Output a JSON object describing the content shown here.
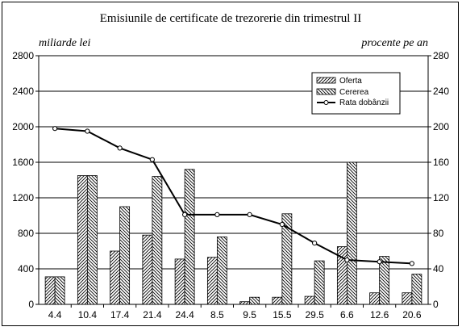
{
  "chart_data": {
    "type": "bar",
    "title": "Emisiunile de certificate de trezorerie din trimestrul II",
    "ylabel_left": "miliarde lei",
    "ylabel_right": "procente pe an",
    "ylim_left": [
      0,
      2800
    ],
    "ylim_right": [
      0,
      280
    ],
    "yticks_left": [
      "0",
      "400",
      "800",
      "1200",
      "1600",
      "2000",
      "2400",
      "2800"
    ],
    "yticks_right": [
      "0",
      "40",
      "80",
      "120",
      "160",
      "200",
      "240",
      "280"
    ],
    "grid": true,
    "legend_position": "top-right",
    "categories": [
      "4.4",
      "10.4",
      "17.4",
      "21.4",
      "24.4",
      "8.5",
      "9.5",
      "15.5",
      "29.5",
      "6.6",
      "12.6",
      "20.6"
    ],
    "series": [
      {
        "name": "Oferta",
        "kind": "bar",
        "axis": "left",
        "pattern": "hatch-forward",
        "values": [
          310,
          1450,
          600,
          780,
          510,
          530,
          30,
          80,
          90,
          650,
          130,
          130
        ]
      },
      {
        "name": "Cererea",
        "kind": "bar",
        "axis": "left",
        "pattern": "hatch-back",
        "values": [
          310,
          1450,
          1100,
          1440,
          1520,
          760,
          80,
          1020,
          490,
          1600,
          540,
          340
        ]
      },
      {
        "name": "Rata dobânzii",
        "kind": "line",
        "axis": "right",
        "marker": "circle",
        "values": [
          198,
          195,
          176,
          163,
          101,
          101,
          101,
          90,
          69,
          50,
          48,
          46
        ]
      }
    ]
  }
}
